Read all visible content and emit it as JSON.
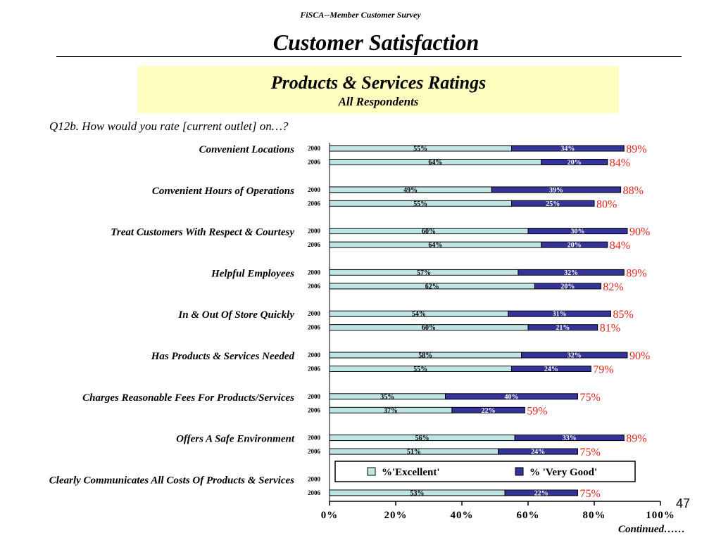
{
  "header": {
    "subtitle": "FiSCA--Member Customer Survey",
    "title": "Customer Satisfaction"
  },
  "banner": {
    "title": "Products & Services Ratings",
    "subtitle": "All Respondents"
  },
  "question": "Q12b.  How would you rate [current outlet] on…?",
  "slide_number": "47",
  "continued": "Continued……",
  "colors": {
    "excellent": "#bfe4e4",
    "very_good": "#333399",
    "total": "#e2231a"
  },
  "chart_data": {
    "type": "bar",
    "orientation": "horizontal",
    "stacked": true,
    "xlim": [
      0,
      100
    ],
    "x_ticks": [
      "0%",
      "20%",
      "40%",
      "60%",
      "80%",
      "100%"
    ],
    "grid": false,
    "legend": {
      "position": "bottom-center",
      "entries": [
        "%'Excellent'",
        "% 'Very Good'"
      ]
    },
    "series_names": [
      "%'Excellent'",
      "% 'Very Good'"
    ],
    "categories": [
      {
        "label": "Convenient Locations",
        "years": [
          {
            "year": "2000",
            "excellent": 55,
            "very_good": 34,
            "total": "89%"
          },
          {
            "year": "2006",
            "excellent": 64,
            "very_good": 20,
            "total": "84%"
          }
        ]
      },
      {
        "label": "Convenient Hours of Operations",
        "years": [
          {
            "year": "2000",
            "excellent": 49,
            "very_good": 39,
            "total": "88%"
          },
          {
            "year": "2006",
            "excellent": 55,
            "very_good": 25,
            "total": "80%"
          }
        ]
      },
      {
        "label": "Treat Customers With Respect & Courtesy",
        "years": [
          {
            "year": "2000",
            "excellent": 60,
            "very_good": 30,
            "total": "90%"
          },
          {
            "year": "2006",
            "excellent": 64,
            "very_good": 20,
            "total": "84%"
          }
        ]
      },
      {
        "label": "Helpful Employees",
        "years": [
          {
            "year": "2000",
            "excellent": 57,
            "very_good": 32,
            "total": "89%"
          },
          {
            "year": "2006",
            "excellent": 62,
            "very_good": 20,
            "total": "82%"
          }
        ]
      },
      {
        "label": "In & Out Of Store Quickly",
        "years": [
          {
            "year": "2000",
            "excellent": 54,
            "very_good": 31,
            "total": "85%"
          },
          {
            "year": "2006",
            "excellent": 60,
            "very_good": 21,
            "total": "81%"
          }
        ]
      },
      {
        "label": "Has Products & Services Needed",
        "years": [
          {
            "year": "2000",
            "excellent": 58,
            "very_good": 32,
            "total": "90%"
          },
          {
            "year": "2006",
            "excellent": 55,
            "very_good": 24,
            "total": "79%"
          }
        ]
      },
      {
        "label": "Charges Reasonable Fees For Products/Services",
        "years": [
          {
            "year": "2000",
            "excellent": 35,
            "very_good": 40,
            "total": "75%"
          },
          {
            "year": "2006",
            "excellent": 37,
            "very_good": 22,
            "total": "59%"
          }
        ]
      },
      {
        "label": "Offers A Safe Environment",
        "years": [
          {
            "year": "2000",
            "excellent": 56,
            "very_good": 33,
            "total": "89%"
          },
          {
            "year": "2006",
            "excellent": 51,
            "very_good": 24,
            "total": "75%"
          }
        ]
      },
      {
        "label": "Clearly Communicates All Costs Of Products & Services",
        "years": [
          {
            "year": "2000",
            "excellent": null,
            "very_good": null,
            "total": null
          },
          {
            "year": "2006",
            "excellent": 53,
            "very_good": 22,
            "total": "75%"
          }
        ]
      }
    ]
  }
}
